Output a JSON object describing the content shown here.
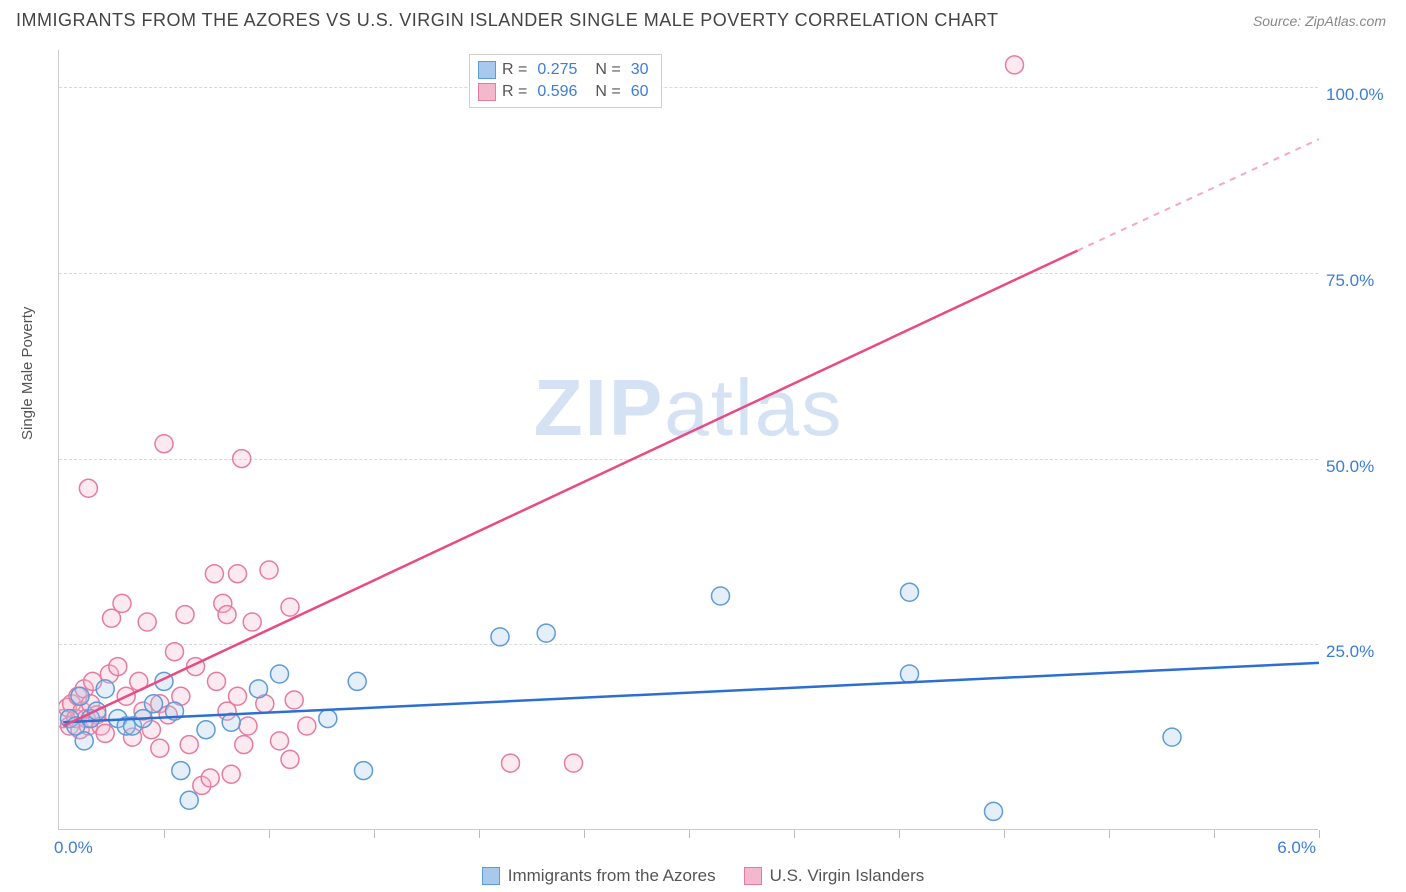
{
  "header": {
    "title": "IMMIGRANTS FROM THE AZORES VS U.S. VIRGIN ISLANDER SINGLE MALE POVERTY CORRELATION CHART",
    "source": "Source: ZipAtlas.com"
  },
  "watermark": {
    "bold": "ZIP",
    "light": "atlas"
  },
  "chart": {
    "type": "scatter",
    "ylabel": "Single Male Poverty",
    "xlim": [
      0,
      6.0
    ],
    "ylim": [
      0,
      105
    ],
    "xtick_minor_vals": [
      0.5,
      1.0,
      1.5,
      2.0,
      2.5,
      3.0,
      3.5,
      4.0,
      4.5,
      5.0,
      5.5,
      6.0
    ],
    "yticks": [
      {
        "v": 25,
        "label": "25.0%"
      },
      {
        "v": 50,
        "label": "50.0%"
      },
      {
        "v": 75,
        "label": "75.0%"
      },
      {
        "v": 100,
        "label": "100.0%"
      }
    ],
    "x_start_label": "0.0%",
    "x_end_label": "6.0%",
    "background_color": "#ffffff",
    "grid_color": "#d8d8d8",
    "marker_radius": 9,
    "marker_stroke_width": 1.5,
    "marker_fill_opacity": 0.3,
    "series": [
      {
        "id": "azores",
        "name": "Immigrants from the Azores",
        "color_stroke": "#5d9bd9",
        "color_fill": "#a9c9ec",
        "R": "0.275",
        "N": "30",
        "trend": {
          "x1": 0.02,
          "y1": 14.5,
          "x2": 6.0,
          "y2": 22.5,
          "color": "#2c6fd1",
          "width": 2.5
        },
        "points": [
          [
            0.05,
            15
          ],
          [
            0.08,
            14
          ],
          [
            0.1,
            18
          ],
          [
            0.12,
            12
          ],
          [
            0.15,
            15
          ],
          [
            0.18,
            16
          ],
          [
            0.22,
            19
          ],
          [
            0.28,
            15
          ],
          [
            0.32,
            14
          ],
          [
            0.35,
            14
          ],
          [
            0.4,
            15
          ],
          [
            0.45,
            17
          ],
          [
            0.5,
            20
          ],
          [
            0.55,
            16
          ],
          [
            0.58,
            8
          ],
          [
            0.62,
            4
          ],
          [
            0.7,
            13.5
          ],
          [
            0.82,
            14.5
          ],
          [
            0.95,
            19
          ],
          [
            1.05,
            21
          ],
          [
            1.28,
            15
          ],
          [
            1.45,
            8
          ],
          [
            1.42,
            20
          ],
          [
            2.1,
            26
          ],
          [
            2.32,
            26.5
          ],
          [
            3.15,
            31.5
          ],
          [
            4.05,
            32
          ],
          [
            4.05,
            21
          ],
          [
            4.45,
            2.5
          ],
          [
            5.3,
            12.5
          ]
        ]
      },
      {
        "id": "usvi",
        "name": "U.S. Virgin Islanders",
        "color_stroke": "#e77ba0",
        "color_fill": "#f4b8cc",
        "R": "0.596",
        "N": "60",
        "trend_solid": {
          "x1": 0.02,
          "y1": 14.0,
          "x2": 4.85,
          "y2": 78.0,
          "color": "#e84b84",
          "width": 2.5
        },
        "trend_dashed": {
          "x1": 4.85,
          "y1": 78.0,
          "x2": 6.0,
          "y2": 93.0,
          "color": "#f4a8c2",
          "width": 2,
          "dash": "6,6"
        },
        "points": [
          [
            0.02,
            15
          ],
          [
            0.04,
            16.5
          ],
          [
            0.05,
            14
          ],
          [
            0.06,
            17
          ],
          [
            0.08,
            15
          ],
          [
            0.09,
            18
          ],
          [
            0.1,
            13.5
          ],
          [
            0.11,
            16
          ],
          [
            0.12,
            19
          ],
          [
            0.13,
            15
          ],
          [
            0.14,
            14
          ],
          [
            0.15,
            17
          ],
          [
            0.16,
            20
          ],
          [
            0.18,
            15.5
          ],
          [
            0.2,
            14
          ],
          [
            0.22,
            13
          ],
          [
            0.24,
            21
          ],
          [
            0.25,
            28.5
          ],
          [
            0.28,
            22
          ],
          [
            0.3,
            30.5
          ],
          [
            0.14,
            46
          ],
          [
            0.32,
            18
          ],
          [
            0.35,
            12.5
          ],
          [
            0.38,
            20
          ],
          [
            0.4,
            16
          ],
          [
            0.42,
            28
          ],
          [
            0.44,
            13.5
          ],
          [
            0.48,
            11
          ],
          [
            0.48,
            17
          ],
          [
            0.5,
            52
          ],
          [
            0.52,
            15.5
          ],
          [
            0.55,
            24
          ],
          [
            0.58,
            18
          ],
          [
            0.6,
            29
          ],
          [
            0.62,
            11.5
          ],
          [
            0.65,
            22
          ],
          [
            0.68,
            6
          ],
          [
            0.72,
            7
          ],
          [
            0.74,
            34.5
          ],
          [
            0.75,
            20
          ],
          [
            0.78,
            30.5
          ],
          [
            0.8,
            16
          ],
          [
            0.8,
            29
          ],
          [
            0.82,
            7.5
          ],
          [
            0.85,
            34.5
          ],
          [
            0.85,
            18
          ],
          [
            0.88,
            11.5
          ],
          [
            0.87,
            50
          ],
          [
            0.92,
            28
          ],
          [
            0.9,
            14
          ],
          [
            0.98,
            17
          ],
          [
            1.0,
            35
          ],
          [
            1.05,
            12
          ],
          [
            1.1,
            30
          ],
          [
            1.12,
            17.5
          ],
          [
            1.1,
            9.5
          ],
          [
            1.18,
            14
          ],
          [
            2.15,
            9
          ],
          [
            2.45,
            9
          ],
          [
            4.55,
            103
          ]
        ]
      }
    ]
  },
  "legend_bottom": [
    {
      "series": "azores"
    },
    {
      "series": "usvi"
    }
  ]
}
